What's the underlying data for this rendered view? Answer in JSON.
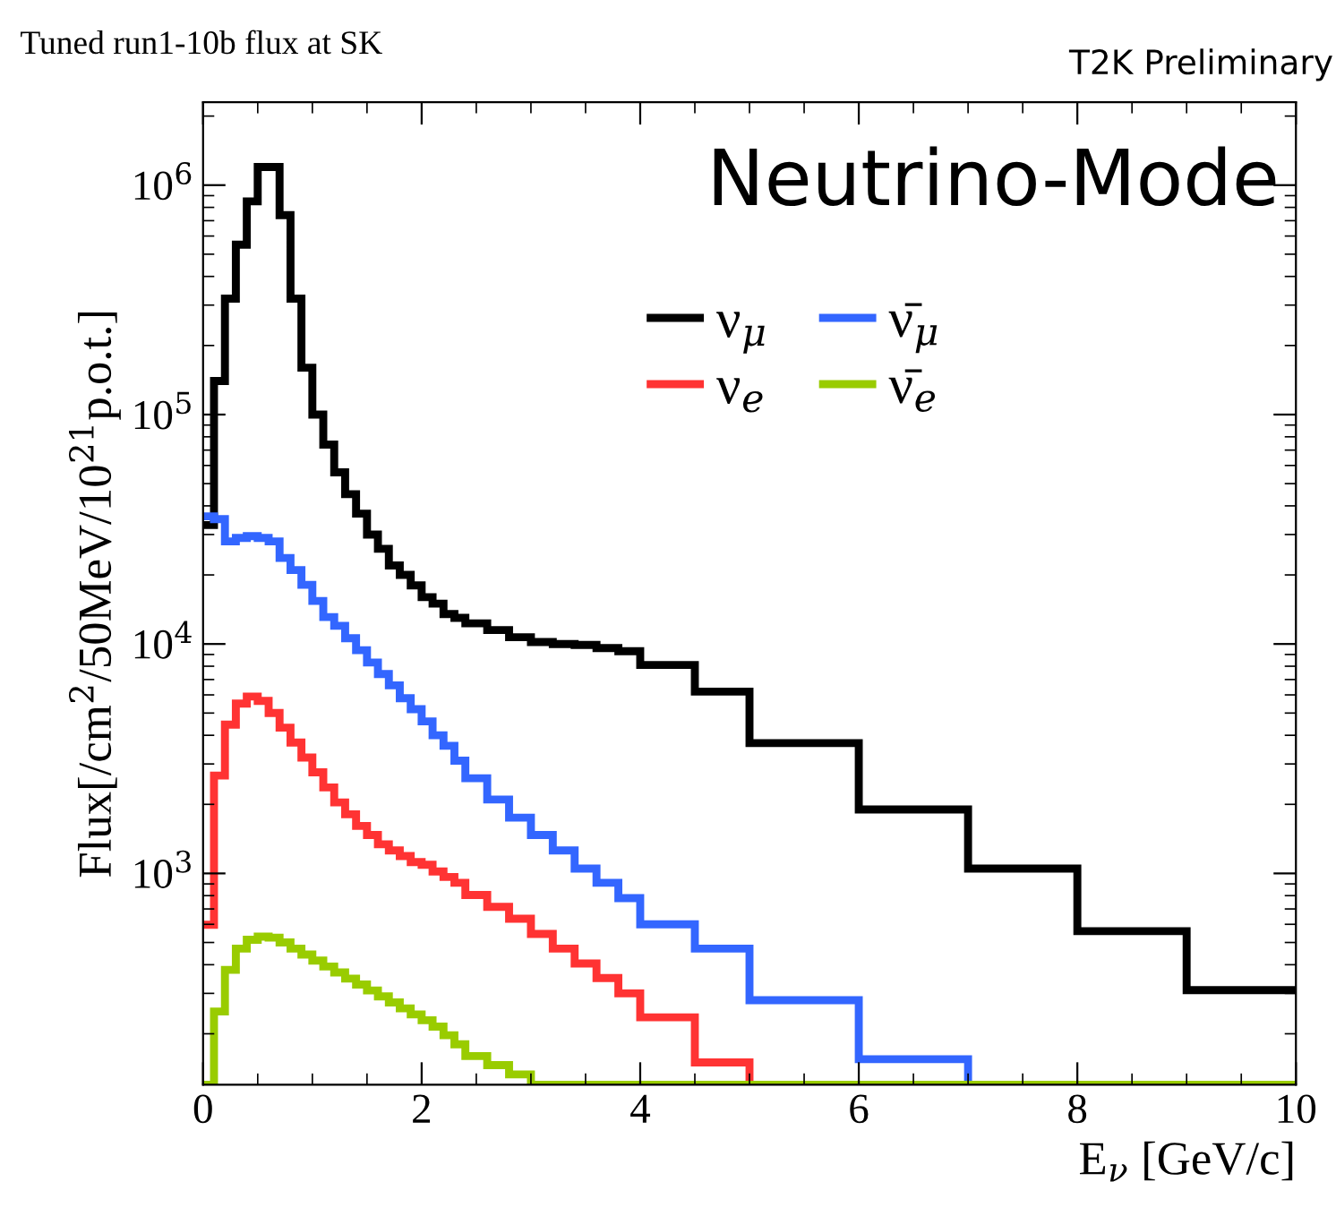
{
  "chart_data": {
    "type": "histogram",
    "title": "Tuned run1-10b flux at SK",
    "subtitle": "T2K Preliminary",
    "xlabel": "E$_{ν}$ [GeV/c]",
    "ylabel": "Flux[/cm$^{2}$/50MeV/10$^{21}$p.o.t.]",
    "annotations": [
      "Neutrino-Mode"
    ],
    "bins": [
      0,
      0.1,
      0.2,
      0.3,
      0.4,
      0.5,
      0.6,
      0.7,
      0.8,
      0.9,
      1.0,
      1.1,
      1.2,
      1.3,
      1.4,
      1.5,
      1.6,
      1.7,
      1.8,
      1.9,
      2.0,
      2.1,
      2.2,
      2.3,
      2.4,
      2.6,
      2.8,
      3.0,
      3.2,
      3.4,
      3.6,
      3.8,
      4.0,
      4.5,
      5.0,
      6,
      7,
      8,
      9,
      10
    ],
    "series": [
      {
        "name": "ν$_{μ}$",
        "color": "#000000",
        "values": [
          33000,
          140000,
          320000,
          550000,
          850000,
          1200000,
          1200000,
          740000,
          320000,
          160000,
          100000,
          74000,
          56000,
          45000,
          37000,
          30000,
          26000,
          22000,
          20000,
          18000,
          16000,
          15000,
          13500,
          13000,
          12300,
          11500,
          10700,
          10200,
          10000,
          9900,
          9600,
          9300,
          8100,
          6200,
          3700,
          1900,
          1050,
          560,
          310
        ]
      },
      {
        "name": "ν$_{e}$",
        "color": "#ff3333",
        "values": [
          597,
          2670,
          4450,
          5500,
          5900,
          5650,
          5000,
          4320,
          3720,
          3200,
          2760,
          2370,
          2040,
          1810,
          1610,
          1470,
          1340,
          1260,
          1190,
          1120,
          1090,
          1020,
          965,
          910,
          805,
          715,
          635,
          545,
          470,
          405,
          350,
          300,
          236,
          150,
          null,
          null,
          null,
          null,
          null
        ]
      },
      {
        "name": "ν̄$_{μ}$",
        "color": "#3366ff",
        "values": [
          36000,
          35000,
          28000,
          29000,
          29500,
          29000,
          28000,
          23700,
          21000,
          18100,
          15400,
          13100,
          12000,
          10600,
          9400,
          8300,
          7400,
          6600,
          5800,
          5200,
          4600,
          4000,
          3600,
          3100,
          2600,
          2100,
          1750,
          1470,
          1260,
          1050,
          910,
          780,
          600,
          470,
          280,
          155,
          null,
          null,
          null
        ]
      },
      {
        "name": "ν̄$_{e}$",
        "color": "#99cc00",
        "values": [
          null,
          250,
          380,
          470,
          514,
          530,
          525,
          500,
          470,
          443,
          417,
          393,
          370,
          348,
          328,
          309,
          291,
          274,
          258,
          243,
          229,
          215,
          197,
          180,
          160,
          146,
          133,
          null,
          null,
          null,
          null,
          null,
          null,
          null,
          null,
          null,
          null,
          null,
          null
        ]
      }
    ],
    "xlim": [
      0,
      10
    ],
    "xticks": [
      0,
      2,
      4,
      6,
      8,
      10
    ],
    "ylim": [
      120,
      2300000
    ],
    "log": true,
    "yticks": [
      {
        "value": 1000,
        "label": "10$^{3}$"
      },
      {
        "value": 10000,
        "label": "10$^{4}$"
      },
      {
        "value": 100000,
        "label": "10$^{5}$"
      },
      {
        "value": 1000000,
        "label": "10$^{6}$"
      }
    ],
    "legend": "top right",
    "grid": false
  }
}
